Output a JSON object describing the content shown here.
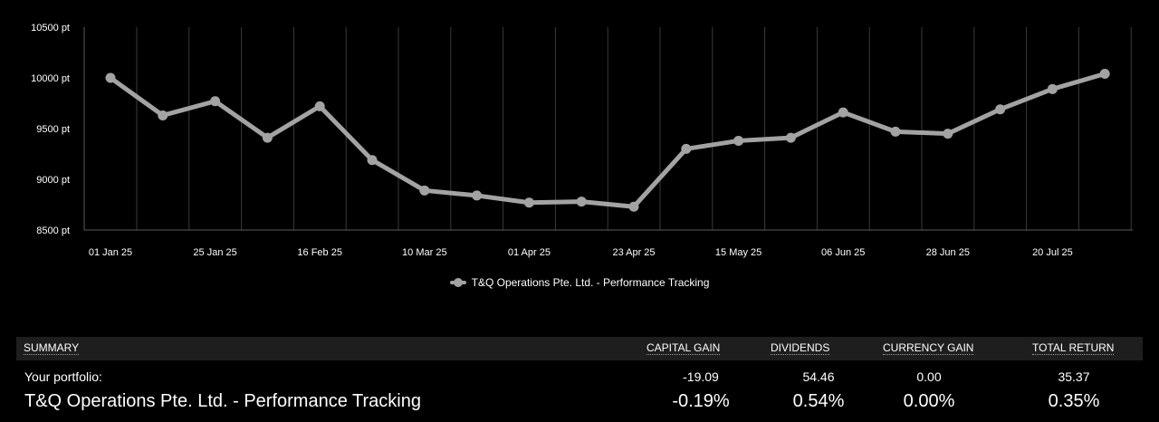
{
  "chart_data": {
    "type": "line",
    "ylim": [
      8500,
      10500
    ],
    "yticks": [
      8500,
      9000,
      9500,
      10000,
      10500
    ],
    "ytick_labels": [
      "8500 pt",
      "9000 pt",
      "9500 pt",
      "10000 pt",
      "10500 pt"
    ],
    "x_tick_labels": [
      "01 Jan 25",
      "25 Jan 25",
      "16 Feb 25",
      "10 Mar 25",
      "01 Apr 25",
      "23 Apr 25",
      "15 May 25",
      "06 Jun 25",
      "28 Jun 25",
      "20 Jul 25"
    ],
    "series": [
      {
        "name": "T&Q Operations Pte. Ltd. - Performance Tracking",
        "color": "#a3a3a3",
        "values": [
          10000,
          9630,
          9770,
          9410,
          9720,
          9190,
          8890,
          8840,
          8770,
          8780,
          8730,
          9300,
          9380,
          9410,
          9660,
          9470,
          9450,
          9690,
          9890,
          10040
        ]
      }
    ],
    "grid": true,
    "legend_position": "bottom"
  },
  "summary": {
    "header": {
      "label": "SUMMARY",
      "capital_gain": "CAPITAL GAIN",
      "dividends": "DIVIDENDS",
      "currency_gain": "CURRENCY GAIN",
      "total_return": "TOTAL RETURN"
    },
    "portfolio": {
      "label": "Your portfolio:",
      "capital_gain": "-19.09",
      "dividends": "54.46",
      "currency_gain": "0.00",
      "total_return": "35.37"
    },
    "percent": {
      "label": "T&Q Operations Pte. Ltd. - Performance Tracking",
      "capital_gain": "-0.19%",
      "dividends": "0.54%",
      "currency_gain": "0.00%",
      "total_return": "0.35%"
    }
  }
}
